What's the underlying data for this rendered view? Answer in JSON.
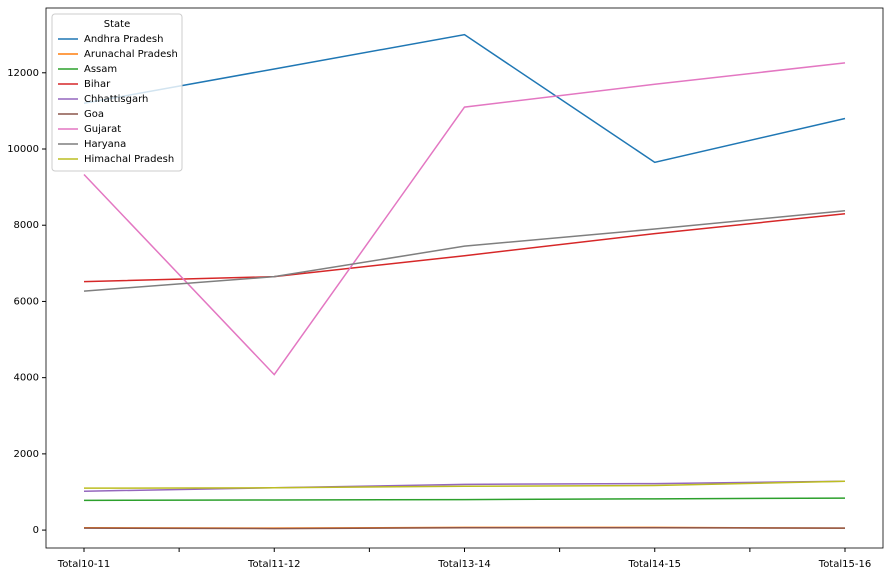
{
  "chart_data": {
    "type": "line",
    "categories": [
      "Total10-11",
      "Total11-12",
      "Total13-14",
      "Total14-15",
      "Total15-16"
    ],
    "series": [
      {
        "name": "Andhra Pradesh",
        "color": "#1f77b4",
        "values": [
          11200,
          12100,
          13000,
          9650,
          10800
        ]
      },
      {
        "name": "Arunachal Pradesh",
        "color": "#ff7f0e",
        "values": [
          60,
          50,
          70,
          70,
          50
        ]
      },
      {
        "name": "Assam",
        "color": "#2ca02c",
        "values": [
          780,
          790,
          800,
          820,
          840
        ]
      },
      {
        "name": "Bihar",
        "color": "#d62728",
        "values": [
          6520,
          6650,
          7200,
          7780,
          8300
        ]
      },
      {
        "name": "Chhattisgarh",
        "color": "#9467bd",
        "values": [
          1020,
          1110,
          1200,
          1220,
          1280
        ]
      },
      {
        "name": "Goa",
        "color": "#8c564b",
        "values": [
          50,
          40,
          60,
          60,
          50
        ]
      },
      {
        "name": "Gujarat",
        "color": "#e377c2",
        "values": [
          9330,
          4080,
          11100,
          11700,
          12260
        ]
      },
      {
        "name": "Haryana",
        "color": "#7f7f7f",
        "values": [
          6270,
          6650,
          7450,
          7900,
          8380
        ]
      },
      {
        "name": "Himachal Pradesh",
        "color": "#bcbd22",
        "values": [
          1100,
          1110,
          1150,
          1170,
          1280
        ]
      }
    ],
    "ylim": [
      -470,
      13700
    ],
    "yticks": [
      0,
      2000,
      4000,
      6000,
      8000,
      10000,
      12000
    ],
    "legend_title": "State",
    "legend": "upper left",
    "grid": false
  }
}
